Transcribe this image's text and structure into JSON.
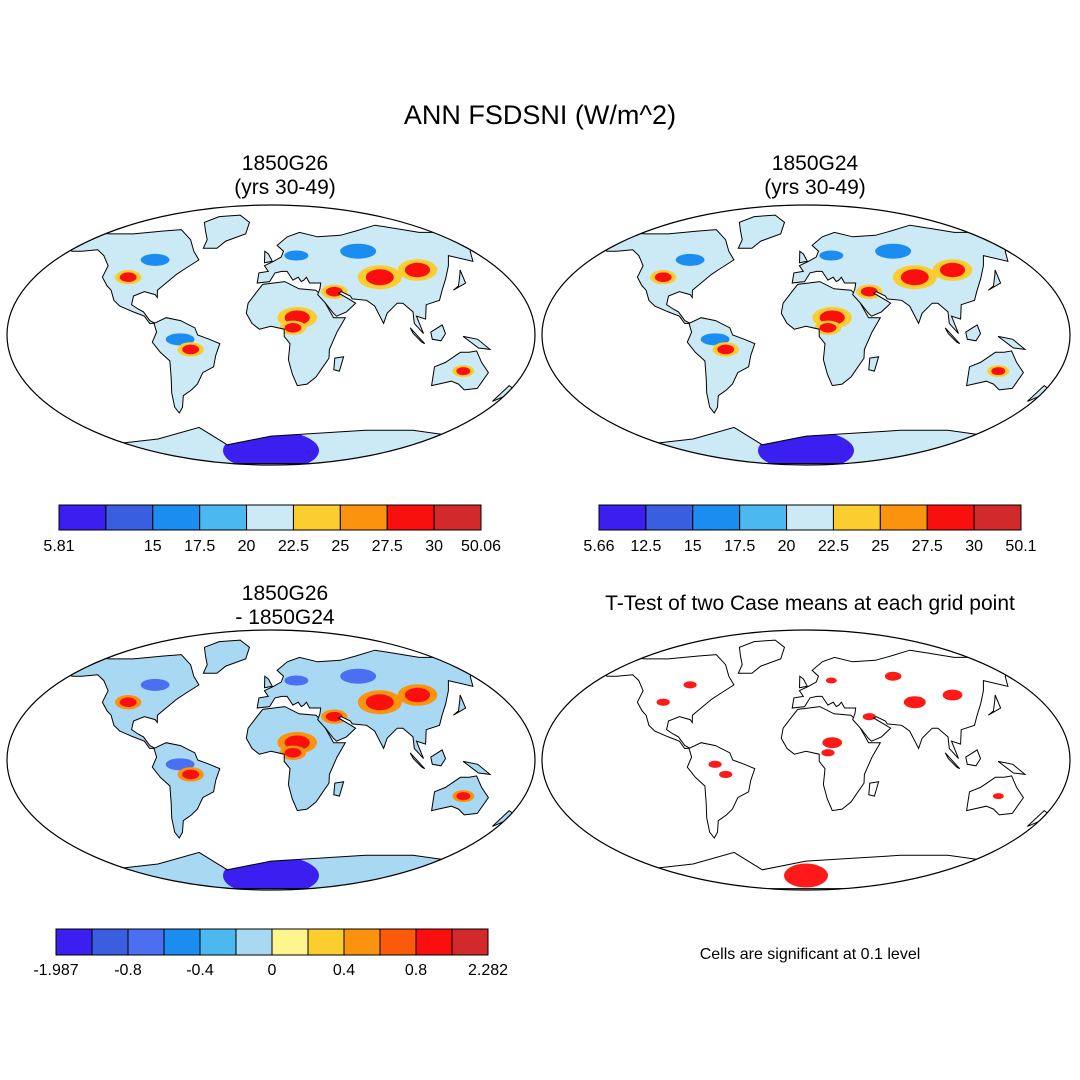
{
  "title": "ANN FSDSNI (W/m^2)",
  "colors": {
    "ocean": "#ffffff",
    "land_outline": "#000000",
    "significant": "#ff0000"
  },
  "chart_data": [
    {
      "type": "heatmap",
      "projection": "robinson",
      "title_line1": "1850G26",
      "title_line2": "(yrs 30-49)",
      "colorbar": {
        "colors": [
          "#3b1ff0",
          "#3a5ee0",
          "#1c8df0",
          "#4cb8f0",
          "#cce9f6",
          "#fccd2e",
          "#fb930e",
          "#fa0f0f",
          "#d22a2a"
        ],
        "labels": [
          "5.81",
          "",
          "15",
          "17.5",
          "20",
          "22.5",
          "25",
          "27.5",
          "30",
          "50.06"
        ],
        "min": 5.81,
        "max": 50.06
      }
    },
    {
      "type": "heatmap",
      "projection": "robinson",
      "title_line1": "1850G24",
      "title_line2": "(yrs 30-49)",
      "colorbar": {
        "colors": [
          "#3b1ff0",
          "#3a5ee0",
          "#1c8df0",
          "#4cb8f0",
          "#cce9f6",
          "#fccd2e",
          "#fb930e",
          "#fa0f0f",
          "#d22a2a"
        ],
        "labels": [
          "5.66",
          "12.5",
          "15",
          "17.5",
          "20",
          "22.5",
          "25",
          "27.5",
          "30",
          "50.1"
        ],
        "min": 5.66,
        "max": 50.1
      }
    },
    {
      "type": "heatmap",
      "projection": "robinson",
      "title_line1": "1850G26",
      "title_line2": "- 1850G24",
      "colorbar": {
        "colors": [
          "#3b1ff0",
          "#3a5ee0",
          "#4a6ff0",
          "#1c8df0",
          "#4cb8f0",
          "#a9d8f2",
          "#fef58e",
          "#fccd2e",
          "#fb930e",
          "#fb5a0a",
          "#fa0f0f",
          "#d22a2a"
        ],
        "labels": [
          "-1.987",
          "",
          "-0.8",
          "",
          "-0.4",
          "",
          "0",
          "",
          "0.4",
          "",
          "0.8",
          "",
          "2.282"
        ],
        "min": -1.987,
        "max": 2.282
      }
    },
    {
      "type": "heatmap",
      "projection": "robinson",
      "title_line1": "T-Test of two Case means at each grid point",
      "title_line2": "",
      "footnote": "Cells are significant at 0.1 level",
      "significance_level": 0.1
    }
  ]
}
